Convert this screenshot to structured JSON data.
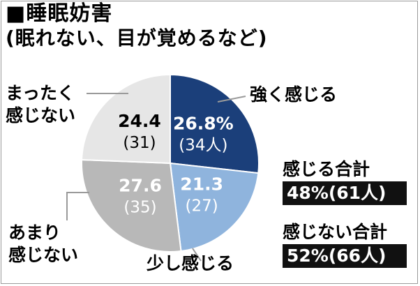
{
  "title": {
    "line1": "■睡眠妨害",
    "line2": "(眠れない、目が覚めるなど)"
  },
  "colors": {
    "strong": "#1b3f7a",
    "little": "#8fb4dd",
    "rarely": "#b8b8b8",
    "notatall": "#e6e6e6",
    "line": "#9a9a9a"
  },
  "chart_data": {
    "type": "pie",
    "slices": [
      {
        "label": "強く感じる",
        "value": 26.8,
        "pct_text": "26.8%",
        "count_text": "(34人)"
      },
      {
        "label": "少し感じる",
        "value": 21.3,
        "pct_text": "21.3",
        "count_text": "(27)"
      },
      {
        "label": "あまり感じない",
        "label_lines": [
          "あまり",
          "感じない"
        ],
        "value": 27.6,
        "pct_text": "27.6",
        "count_text": "(35)"
      },
      {
        "label": "まったく感じない",
        "label_lines": [
          "まったく",
          "感じない"
        ],
        "value": 24.4,
        "pct_text": "24.4",
        "count_text": "(31)"
      }
    ]
  },
  "totals": {
    "feel": {
      "caption": "感じる合計",
      "value": "48%(61人)"
    },
    "not_feel": {
      "caption": "感じない合計",
      "value": "52%(66人)"
    }
  }
}
